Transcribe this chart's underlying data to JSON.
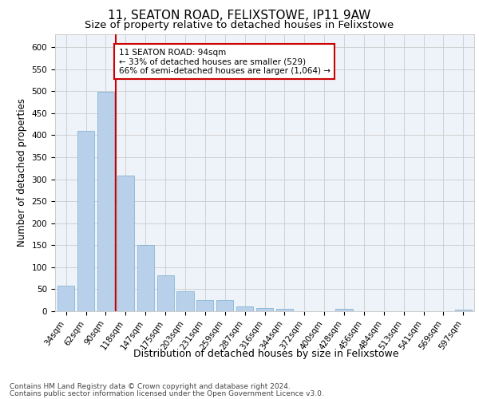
{
  "title1": "11, SEATON ROAD, FELIXSTOWE, IP11 9AW",
  "title2": "Size of property relative to detached houses in Felixstowe",
  "xlabel": "Distribution of detached houses by size in Felixstowe",
  "ylabel": "Number of detached properties",
  "categories": [
    "34sqm",
    "62sqm",
    "90sqm",
    "118sqm",
    "147sqm",
    "175sqm",
    "203sqm",
    "231sqm",
    "259sqm",
    "287sqm",
    "316sqm",
    "344sqm",
    "372sqm",
    "400sqm",
    "428sqm",
    "456sqm",
    "484sqm",
    "513sqm",
    "541sqm",
    "569sqm",
    "597sqm"
  ],
  "values": [
    58,
    410,
    498,
    308,
    150,
    82,
    46,
    25,
    25,
    10,
    8,
    5,
    0,
    0,
    5,
    0,
    0,
    0,
    0,
    0,
    3
  ],
  "bar_color": "#b8d0ea",
  "bar_edge_color": "#7aaecf",
  "vline_x": 2.5,
  "annotation_text": "11 SEATON ROAD: 94sqm\n← 33% of detached houses are smaller (529)\n66% of semi-detached houses are larger (1,064) →",
  "annotation_box_facecolor": "#ffffff",
  "annotation_box_edgecolor": "#cc0000",
  "vline_color": "#cc0000",
  "ylim": [
    0,
    630
  ],
  "yticks": [
    0,
    50,
    100,
    150,
    200,
    250,
    300,
    350,
    400,
    450,
    500,
    550,
    600
  ],
  "footer1": "Contains HM Land Registry data © Crown copyright and database right 2024.",
  "footer2": "Contains public sector information licensed under the Open Government Licence v3.0.",
  "bg_color": "#eef2f9",
  "title1_fontsize": 11,
  "title2_fontsize": 9.5,
  "xlabel_fontsize": 9,
  "ylabel_fontsize": 8.5,
  "tick_fontsize": 7.5,
  "annot_fontsize": 7.5,
  "footer_fontsize": 6.5
}
